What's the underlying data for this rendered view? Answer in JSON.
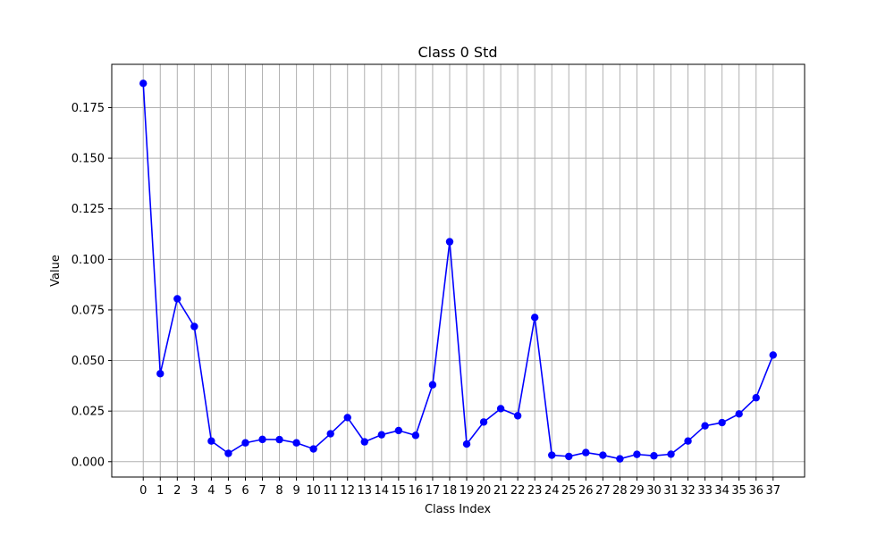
{
  "chart_data": {
    "type": "line",
    "title": "Class 0 Std",
    "xlabel": "Class Index",
    "ylabel": "Value",
    "x": [
      0,
      1,
      2,
      3,
      4,
      5,
      6,
      7,
      8,
      9,
      10,
      11,
      12,
      13,
      14,
      15,
      16,
      17,
      18,
      19,
      20,
      21,
      22,
      23,
      24,
      25,
      26,
      27,
      28,
      29,
      30,
      31,
      32,
      33,
      34,
      35,
      36,
      37
    ],
    "series": [
      {
        "name": "",
        "color": "#0000ff",
        "marker": "circle",
        "values": [
          0.187,
          0.0435,
          0.0805,
          0.0668,
          0.0102,
          0.0041,
          0.0093,
          0.011,
          0.0109,
          0.0093,
          0.0063,
          0.0138,
          0.0218,
          0.0098,
          0.0133,
          0.0154,
          0.013,
          0.038,
          0.1087,
          0.0087,
          0.0196,
          0.0262,
          0.0227,
          0.0713,
          0.0032,
          0.0026,
          0.0045,
          0.0032,
          0.0014,
          0.0036,
          0.0029,
          0.0037,
          0.0102,
          0.0177,
          0.0193,
          0.0236,
          0.0316,
          0.0527
        ]
      }
    ],
    "xlim": [
      -1.85,
      38.85
    ],
    "ylim": [
      -0.0076,
      0.1964
    ],
    "yticks": [
      "0.000",
      "0.025",
      "0.050",
      "0.075",
      "0.100",
      "0.125",
      "0.150",
      "0.175"
    ],
    "grid": true
  }
}
